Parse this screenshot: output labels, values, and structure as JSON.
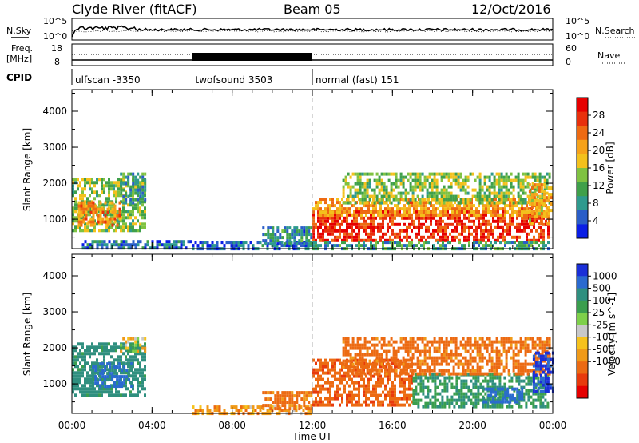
{
  "header": {
    "station": "Clyde River (fitACF)",
    "beam": "Beam 05",
    "date": "12/Oct/2016"
  },
  "noise_panel": {
    "left_label": "N.Sky",
    "right_label": "N.Search",
    "left_ticks": [
      "10^5",
      "10^0"
    ],
    "right_ticks": [
      "10^5",
      "10^0"
    ]
  },
  "freq_panel": {
    "left_label_1": "Freq.",
    "left_label_2": "[MHz]",
    "left_ticks": [
      "18",
      "8"
    ],
    "right_label": "Nave",
    "right_ticks": [
      "60",
      "0"
    ]
  },
  "cpid": {
    "label": "CPID",
    "segments": [
      {
        "name": "ulfscan -3350",
        "start_h": 0,
        "end_h": 6
      },
      {
        "name": "twofsound 3503",
        "start_h": 6,
        "end_h": 12
      },
      {
        "name": "normal (fast) 151",
        "start_h": 12,
        "end_h": 24
      }
    ]
  },
  "x_axis": {
    "label": "Time UT",
    "range_h": [
      0,
      24
    ],
    "tick_labels": [
      "00:00",
      "04:00",
      "08:00",
      "12:00",
      "16:00",
      "20:00",
      "00:00"
    ],
    "tick_values_h": [
      0,
      4,
      8,
      12,
      16,
      20,
      24
    ]
  },
  "chart_data": [
    {
      "type": "heatmap",
      "name": "Power",
      "ylabel": "Slant Range [km]",
      "ylim": [
        180,
        4600
      ],
      "y_tick_labels": [
        "1000",
        "2000",
        "3000",
        "4000"
      ],
      "y_tick_values": [
        1000,
        2000,
        3000,
        4000
      ],
      "colorbar": {
        "label": "Power [dB]",
        "tick_labels": [
          "4",
          "8",
          "12",
          "16",
          "20",
          "24",
          "28"
        ],
        "tick_values": [
          4,
          8,
          12,
          16,
          20,
          24,
          28
        ],
        "range": [
          0,
          32
        ],
        "colors": [
          "#0a1ee6",
          "#2a5ec8",
          "#2e9a8e",
          "#3fa04a",
          "#7fc241",
          "#f3c11c",
          "#f6a21a",
          "#ee6a12",
          "#e8300c",
          "#e60000"
        ]
      },
      "regions": [
        {
          "t0": 0.0,
          "t1": 3.7,
          "r0": 700,
          "r1": 2150,
          "level": 14
        },
        {
          "t0": 0.3,
          "t1": 2.4,
          "r0": 800,
          "r1": 1500,
          "level": 22
        },
        {
          "t0": 2.4,
          "t1": 3.6,
          "r0": 1450,
          "r1": 2300,
          "level": 9
        },
        {
          "t0": 0.5,
          "t1": 5.9,
          "r0": 200,
          "r1": 420,
          "level": 6
        },
        {
          "t0": 6.0,
          "t1": 11.9,
          "r0": 180,
          "r1": 400,
          "level": 5
        },
        {
          "t0": 9.5,
          "t1": 11.9,
          "r0": 350,
          "r1": 800,
          "level": 8
        },
        {
          "t0": 12.0,
          "t1": 23.8,
          "r0": 450,
          "r1": 1250,
          "level": 28
        },
        {
          "t0": 12.0,
          "t1": 23.8,
          "r0": 1100,
          "r1": 1600,
          "level": 21
        },
        {
          "t0": 13.5,
          "t1": 23.8,
          "r0": 1500,
          "r1": 2300,
          "level": 14
        },
        {
          "t0": 12.0,
          "t1": 23.8,
          "r0": 180,
          "r1": 400,
          "level": 10
        },
        {
          "t0": 22.8,
          "t1": 23.9,
          "r0": 900,
          "r1": 2000,
          "level": 20
        }
      ]
    },
    {
      "type": "heatmap",
      "name": "Velocity",
      "ylabel": "Slant Range [km]",
      "ylim": [
        180,
        4600
      ],
      "y_tick_labels": [
        "1000",
        "2000",
        "3000",
        "4000"
      ],
      "y_tick_values": [
        1000,
        2000,
        3000,
        4000
      ],
      "colorbar": {
        "label": "Velocity [m s^-1]",
        "tick_labels": [
          "1000",
          "500",
          "100",
          "25",
          "-25",
          "-100",
          "-500",
          "-1000"
        ],
        "tick_values": [
          1000,
          500,
          100,
          25,
          -25,
          -100,
          -500,
          -1000
        ],
        "colors": [
          "#1a2fd8",
          "#2a6ad0",
          "#2f8f7f",
          "#3a9e4e",
          "#7ed04a",
          "#c8c8c8",
          "#f6c21c",
          "#f09a18",
          "#ec6a12",
          "#e83a0c",
          "#e60000"
        ]
      },
      "regions": [
        {
          "t0": 0.0,
          "t1": 3.7,
          "r0": 700,
          "r1": 2150,
          "level": 150
        },
        {
          "t0": 1.0,
          "t1": 3.0,
          "r0": 900,
          "r1": 1600,
          "level": 600
        },
        {
          "t0": 2.4,
          "t1": 3.6,
          "r0": 1900,
          "r1": 2300,
          "level": 0
        },
        {
          "t0": 6.0,
          "t1": 11.9,
          "r0": 180,
          "r1": 400,
          "level": -60
        },
        {
          "t0": 9.5,
          "t1": 11.9,
          "r0": 350,
          "r1": 800,
          "level": -150
        },
        {
          "t0": 12.0,
          "t1": 17.0,
          "r0": 400,
          "r1": 1700,
          "level": -400
        },
        {
          "t0": 17.0,
          "t1": 23.8,
          "r0": 400,
          "r1": 1300,
          "level": 100
        },
        {
          "t0": 13.5,
          "t1": 23.8,
          "r0": 1300,
          "r1": 2300,
          "level": -150
        },
        {
          "t0": 20.5,
          "t1": 22.5,
          "r0": 500,
          "r1": 900,
          "level": 700
        },
        {
          "t0": 23.0,
          "t1": 24.0,
          "r0": 800,
          "r1": 1900,
          "level": 1200
        }
      ]
    }
  ]
}
